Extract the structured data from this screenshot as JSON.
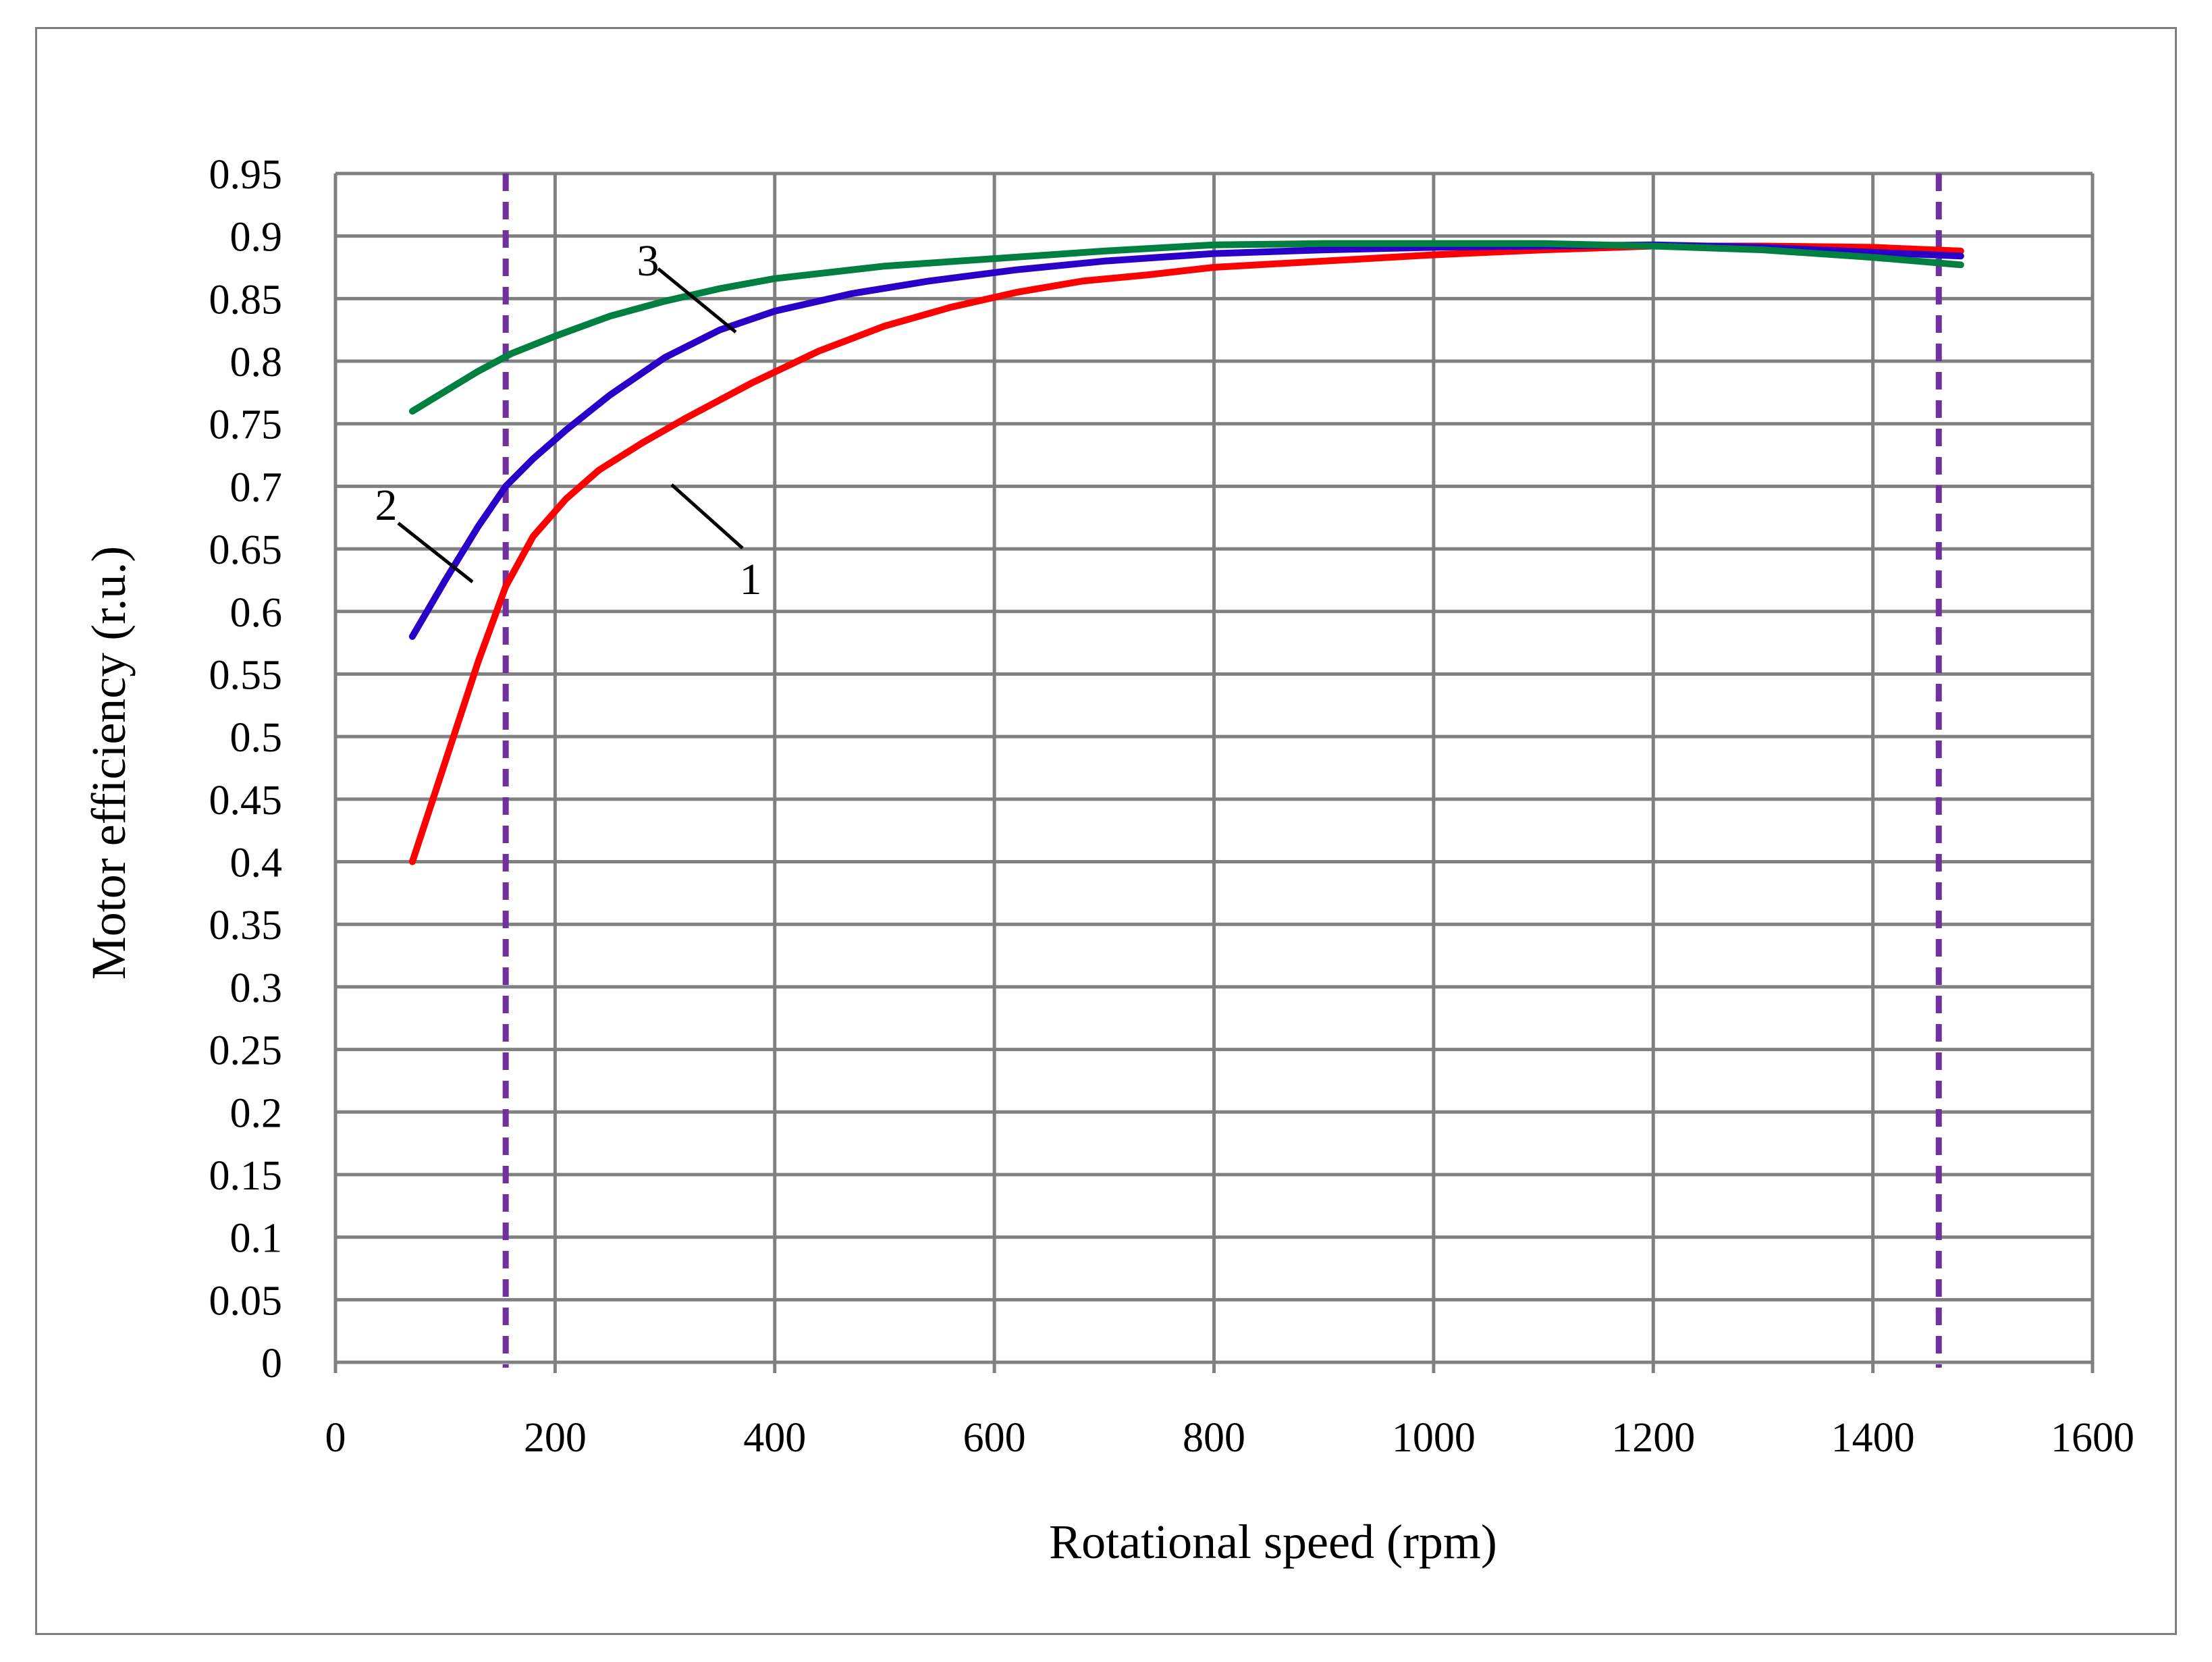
{
  "chart_data": {
    "type": "line",
    "title": "",
    "xlabel": "Rotational speed (rpm)",
    "ylabel": "Motor efficiency (r.u.)",
    "xlim": [
      0,
      1600
    ],
    "ylim": [
      0,
      0.95
    ],
    "x_ticks": [
      0,
      200,
      400,
      600,
      800,
      1000,
      1200,
      1400,
      1600
    ],
    "x_tick_labels": [
      "0",
      "200",
      "400",
      "600",
      "800",
      "1000",
      "1200",
      "1400",
      "1600"
    ],
    "y_ticks": [
      0,
      0.05,
      0.1,
      0.15,
      0.2,
      0.25,
      0.3,
      0.35,
      0.4,
      0.45,
      0.5,
      0.55,
      0.6,
      0.65,
      0.7,
      0.75,
      0.8,
      0.85,
      0.9,
      0.95
    ],
    "y_tick_labels": [
      "0",
      "0.05",
      "0.1",
      "0.15",
      "0.2",
      "0.25",
      "0.3",
      "0.35",
      "0.4",
      "0.45",
      "0.5",
      "0.55",
      "0.6",
      "0.65",
      "0.7",
      "0.75",
      "0.8",
      "0.85",
      "0.9",
      "0.95"
    ],
    "grid": true,
    "legend": "none",
    "series": [
      {
        "label": "1",
        "color": "#ff0000",
        "x": [
          70,
          100,
          130,
          155,
          180,
          210,
          240,
          280,
          320,
          380,
          440,
          500,
          560,
          620,
          680,
          740,
          800,
          900,
          1000,
          1100,
          1200,
          1300,
          1400,
          1480
        ],
        "y": [
          0.4,
          0.48,
          0.56,
          0.62,
          0.66,
          0.69,
          0.713,
          0.735,
          0.755,
          0.783,
          0.808,
          0.828,
          0.843,
          0.855,
          0.864,
          0.869,
          0.875,
          0.88,
          0.885,
          0.889,
          0.892,
          0.892,
          0.891,
          0.888
        ]
      },
      {
        "label": "2",
        "color": "#2a00c8",
        "x": [
          70,
          100,
          130,
          155,
          180,
          210,
          250,
          300,
          350,
          400,
          470,
          540,
          620,
          700,
          800,
          900,
          1000,
          1100,
          1200,
          1300,
          1400,
          1480
        ],
        "y": [
          0.58,
          0.625,
          0.668,
          0.7,
          0.722,
          0.745,
          0.773,
          0.803,
          0.825,
          0.84,
          0.854,
          0.864,
          0.873,
          0.88,
          0.886,
          0.889,
          0.891,
          0.892,
          0.893,
          0.891,
          0.887,
          0.884
        ]
      },
      {
        "label": "3",
        "color": "#008040",
        "x": [
          70,
          100,
          130,
          160,
          200,
          250,
          300,
          350,
          400,
          500,
          600,
          700,
          800,
          900,
          1000,
          1100,
          1200,
          1300,
          1400,
          1480
        ],
        "y": [
          0.76,
          0.776,
          0.792,
          0.806,
          0.82,
          0.836,
          0.848,
          0.858,
          0.866,
          0.876,
          0.882,
          0.888,
          0.893,
          0.894,
          0.894,
          0.894,
          0.892,
          0.889,
          0.883,
          0.877
        ]
      }
    ],
    "reference_lines": [
      {
        "axis": "x",
        "value": 155,
        "style": "dashed",
        "color": "#7030a0"
      },
      {
        "axis": "x",
        "value": 1460,
        "style": "dashed",
        "color": "#7030a0"
      }
    ],
    "annotations": [
      {
        "text": "1",
        "points_to_series": "1"
      },
      {
        "text": "2",
        "points_to_series": "2"
      },
      {
        "text": "3",
        "points_to_series": "3"
      }
    ],
    "colors": {
      "grid": "#808080",
      "axis": "#808080",
      "border": "#7f7f7f"
    }
  }
}
